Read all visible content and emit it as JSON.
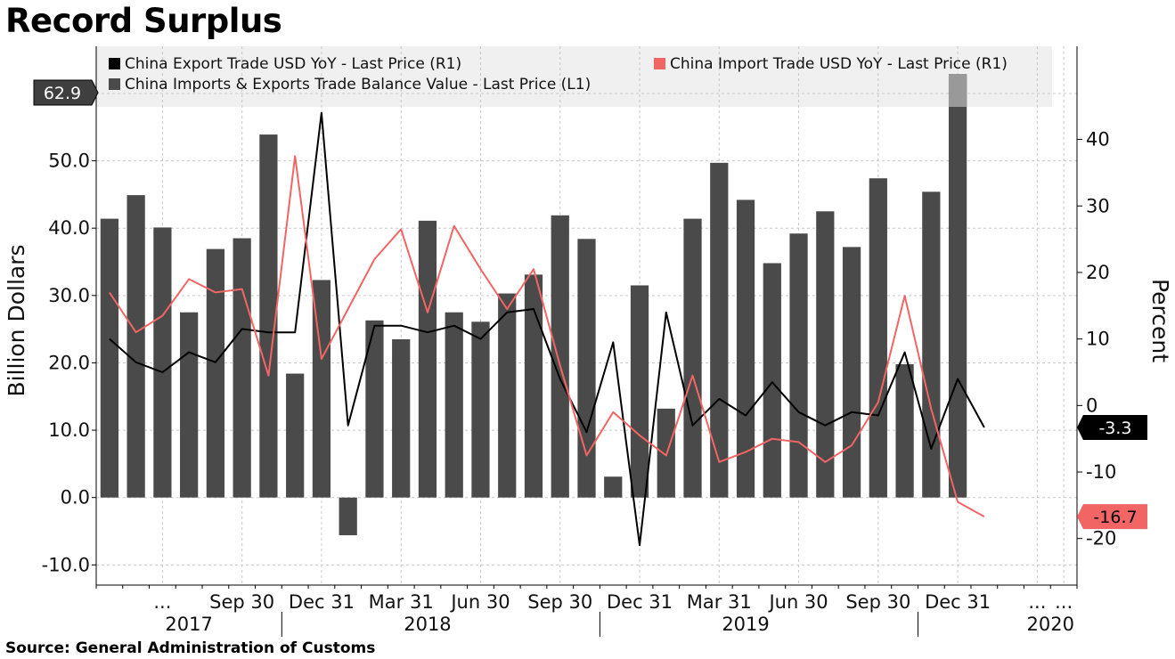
{
  "title": "Record Surplus",
  "source": "Source: General Administration of Customs",
  "colors": {
    "bars": "#4a4a4a",
    "bar_last": "#999999",
    "export_line": "#000000",
    "import_line": "#f26565",
    "legend_bg": "#f0f0f0",
    "grid": "#c8c8c8"
  },
  "chart_data": {
    "type": "bar",
    "left_axis": {
      "label": "Billion Dollars",
      "ylim": [
        -13.0,
        67.0
      ],
      "ticks": [
        "-10.0",
        "0.0",
        "10.0",
        "20.0",
        "30.0",
        "40.0",
        "50.0",
        "60.0"
      ],
      "tick_values": [
        -10,
        0,
        10,
        20,
        30,
        40,
        50,
        60
      ]
    },
    "right_axis": {
      "label": "Percent",
      "ylim": [
        -27,
        54
      ],
      "ticks": [
        "-20",
        "-10",
        "0",
        "10",
        "20",
        "30",
        "40"
      ],
      "tick_values": [
        -20,
        -10,
        0,
        10,
        20,
        30,
        40
      ]
    },
    "x_ticks": [
      "...",
      "Sep 30",
      "Dec 31",
      "Mar 31",
      "Jun 30",
      "Sep 30",
      "Dec 31",
      "Mar 31",
      "Jun 30",
      "Sep 30",
      "Dec 31",
      "...",
      "..."
    ],
    "x_tick_months": [
      2,
      5,
      8,
      11,
      14,
      17,
      20,
      23,
      26,
      29,
      32,
      35,
      36
    ],
    "years": [
      {
        "label": "2017",
        "center_month": 3
      },
      {
        "label": "2018",
        "center_month": 12
      },
      {
        "label": "2019",
        "center_month": 24
      },
      {
        "label": "2020",
        "center_month": 35.5
      }
    ],
    "year_separators": [
      6.5,
      18.5,
      30.5
    ],
    "months": 37,
    "grid": true,
    "legend_position": "top",
    "series": [
      {
        "name": "China Export Trade USD YoY - Last Price (R1)",
        "axis": "right",
        "kind": "line",
        "values": [
          10,
          6.5,
          5,
          8,
          6.5,
          11.5,
          11,
          11,
          44,
          -3,
          12,
          12,
          11,
          12,
          10,
          14,
          14.5,
          4,
          -4,
          9.5,
          -21,
          14,
          -3,
          1,
          -1.5,
          3.5,
          -1,
          -3,
          -1,
          -1.5,
          8,
          -6.5,
          4,
          -3.3,
          null,
          null,
          null
        ],
        "last_value": "-3.3"
      },
      {
        "name": "China Import Trade USD YoY - Last Price (R1)",
        "axis": "right",
        "kind": "line",
        "values": [
          17,
          11,
          13.5,
          19,
          17,
          17.5,
          4.5,
          37.5,
          7,
          14.5,
          22,
          26.5,
          14,
          27,
          20.5,
          14.5,
          20.5,
          6,
          -7.5,
          -1,
          -4.5,
          -7.5,
          4.5,
          -8.5,
          -7,
          -5,
          -5.5,
          -8.5,
          -6,
          0.5,
          16.5,
          -0.5,
          -14.5,
          -16.7,
          null,
          null,
          null
        ],
        "last_value": "-16.7"
      },
      {
        "name": "China Imports & Exports Trade Balance Value - Last Price (L1)",
        "axis": "left",
        "kind": "bar",
        "values": [
          41.4,
          44.9,
          40.1,
          27.5,
          36.9,
          38.5,
          53.9,
          18.4,
          32.3,
          -5.6,
          26.3,
          23.5,
          41.1,
          27.5,
          26.1,
          30.3,
          33.1,
          41.9,
          38.4,
          3.1,
          31.5,
          13.2,
          41.4,
          49.7,
          44.2,
          34.8,
          39.2,
          42.5,
          37.2,
          47.4,
          19.8,
          45.4,
          62.9,
          null,
          null,
          null,
          null
        ],
        "last_value": "62.9"
      }
    ]
  }
}
